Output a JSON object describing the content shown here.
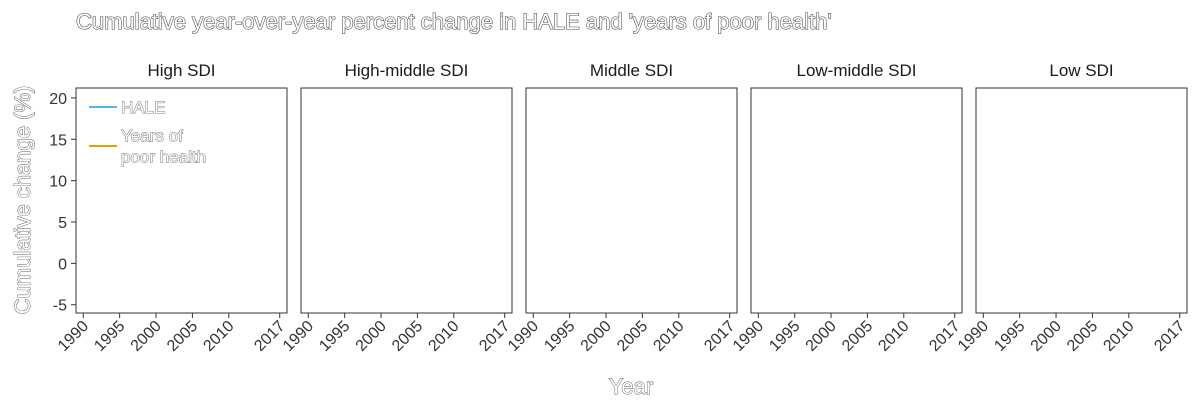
{
  "chart_data": {
    "type": "line",
    "title": "Cumulative year-over-year percent change in HALE and 'years of poor health'",
    "xlabel": "Year",
    "ylabel": "Cumulative change (%)",
    "ylim": [
      -6,
      21.2
    ],
    "xlim": [
      1989,
      2018
    ],
    "yticks": [
      -5,
      0,
      5,
      10,
      15,
      20
    ],
    "xticks": [
      1990,
      1995,
      2000,
      2005,
      2010,
      2017
    ],
    "grid": false,
    "legend_placement": "top-left of first panel",
    "panels": [
      {
        "name": "High SDI",
        "series": []
      },
      {
        "name": "High-middle SDI",
        "series": []
      },
      {
        "name": "Middle SDI",
        "series": []
      },
      {
        "name": "Low-middle SDI",
        "series": []
      },
      {
        "name": "Low SDI",
        "series": []
      }
    ],
    "legend": [
      {
        "name": "HALE",
        "lines": [
          "HALE"
        ],
        "color": "#56B4E9"
      },
      {
        "name": "Years of poor health",
        "lines": [
          "Years of",
          "poor health"
        ],
        "color": "#E69F00"
      }
    ]
  }
}
